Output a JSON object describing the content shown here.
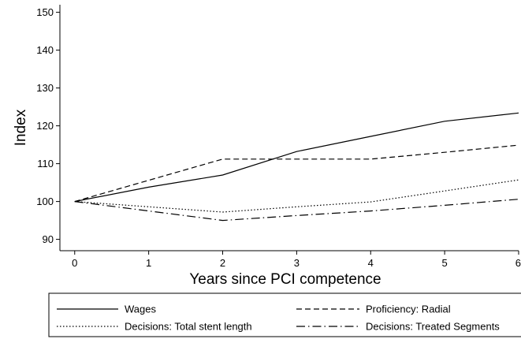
{
  "chart_data": {
    "type": "line",
    "title": "",
    "xlabel": "Years since PCI competence",
    "ylabel": "Index",
    "x": [
      0,
      1,
      2,
      3,
      4,
      5,
      6
    ],
    "xticks": [
      0,
      1,
      2,
      3,
      4,
      5,
      6
    ],
    "yticks": [
      90,
      100,
      110,
      120,
      130,
      140,
      150
    ],
    "xlim": [
      -0.2,
      6
    ],
    "ylim": [
      87,
      152
    ],
    "grid": false,
    "legend_position": "bottom",
    "series": [
      {
        "name": "Wages",
        "dash": "solid",
        "values": [
          100,
          103.8,
          107.0,
          113.2,
          117.2,
          121.2,
          123.4
        ]
      },
      {
        "name": "Proficiency: Radial",
        "dash": "dashed",
        "values": [
          100,
          105.6,
          111.2,
          111.2,
          111.2,
          113.0,
          114.9
        ]
      },
      {
        "name": "Decisions: Total stent length",
        "dash": "dotted",
        "values": [
          100,
          98.6,
          97.2,
          98.6,
          99.9,
          102.8,
          105.7
        ]
      },
      {
        "name": "Decisions: Treated Segments",
        "dash": "dashdot",
        "values": [
          100,
          97.5,
          95.0,
          96.3,
          97.5,
          99.0,
          100.6
        ]
      }
    ]
  }
}
